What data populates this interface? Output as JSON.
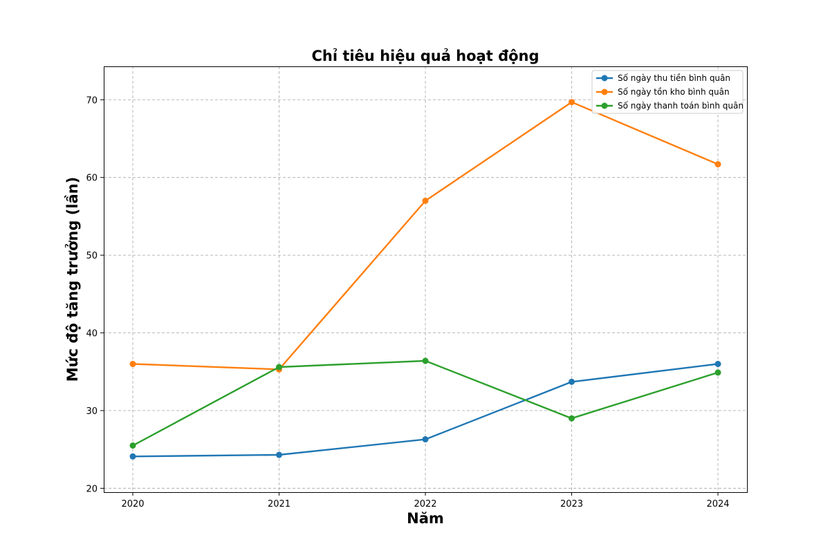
{
  "chart_data": {
    "type": "line",
    "title": "Chỉ tiêu hiệu quả hoạt động",
    "xlabel": "Năm",
    "ylabel": "Mức độ tăng trưởng (lần)",
    "x": [
      "2020",
      "2021",
      "2022",
      "2023",
      "2024"
    ],
    "yticks": [
      20,
      30,
      40,
      50,
      60,
      70
    ],
    "ylim": [
      19.5,
      74.3
    ],
    "grid": true,
    "legend_position": "top-right",
    "series": [
      {
        "name": "Số ngày thu tiền bình quân",
        "color": "#1f77b4",
        "values": [
          24.1,
          24.3,
          26.3,
          33.7,
          36.0
        ]
      },
      {
        "name": "Số ngày tồn kho bình quân",
        "color": "#ff7f0e",
        "values": [
          36.0,
          35.3,
          57.0,
          69.7,
          61.7
        ]
      },
      {
        "name": "Số ngày thanh toán bình quân",
        "color": "#2ca02c",
        "values": [
          25.5,
          35.6,
          36.4,
          29.0,
          34.9
        ]
      }
    ]
  }
}
